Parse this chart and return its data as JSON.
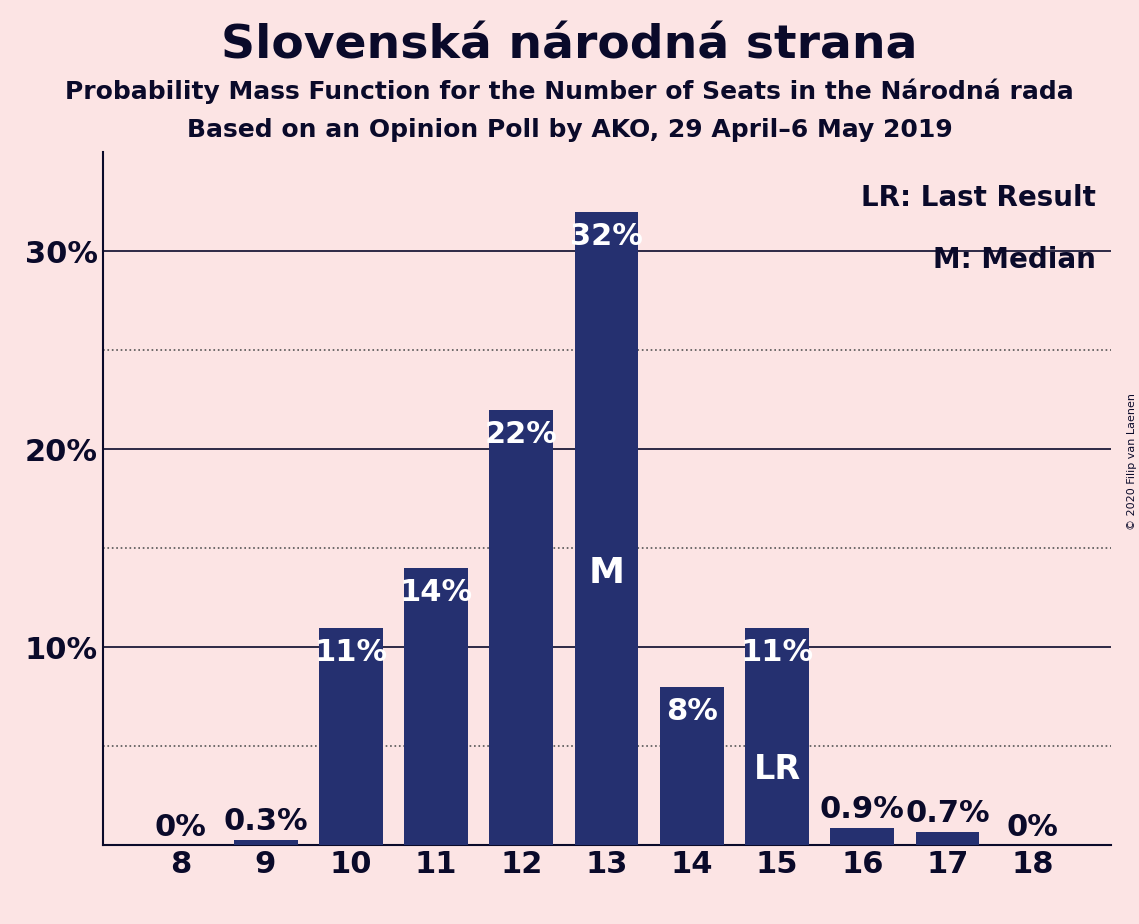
{
  "title": "Slovenská národná strana",
  "subtitle1": "Probability Mass Function for the Number of Seats in the Národná rada",
  "subtitle2": "Based on an Opinion Poll by AKO, 29 April–6 May 2019",
  "copyright": "© 2020 Filip van Laenen",
  "categories": [
    8,
    9,
    10,
    11,
    12,
    13,
    14,
    15,
    16,
    17,
    18
  ],
  "values": [
    0.0,
    0.3,
    11.0,
    14.0,
    22.0,
    32.0,
    8.0,
    11.0,
    0.9,
    0.7,
    0.0
  ],
  "labels": [
    "0%",
    "0.3%",
    "11%",
    "14%",
    "22%",
    "32%",
    "8%",
    "11%",
    "0.9%",
    "0.7%",
    "0%"
  ],
  "bar_color": "#253070",
  "background_color": "#fce4e4",
  "text_color": "#0a0a2a",
  "bar_text_color_dark": "#0a0a2a",
  "bar_text_color_light": "#ffffff",
  "median_bar": 13,
  "lr_bar": 15,
  "ylim": [
    0,
    35
  ],
  "solid_yticks": [
    10,
    20,
    30
  ],
  "solid_ytick_labels": [
    "10%",
    "20%",
    "30%"
  ],
  "dotted_yticks": [
    5,
    15,
    25
  ],
  "legend_lr": "LR: Last Result",
  "legend_m": "M: Median",
  "title_fontsize": 34,
  "subtitle_fontsize": 18,
  "annotation_fontsize": 22,
  "tick_fontsize": 22,
  "legend_fontsize": 20
}
